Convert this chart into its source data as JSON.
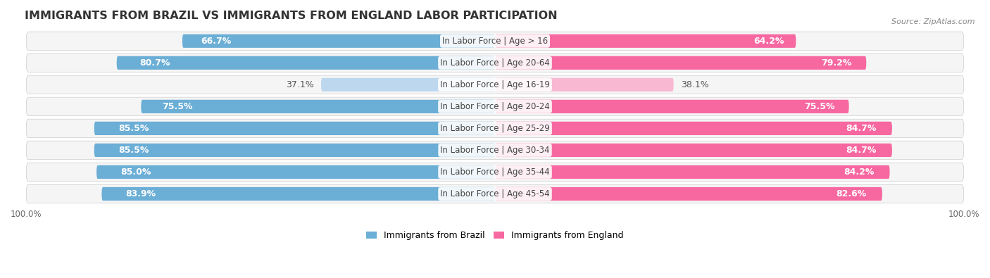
{
  "title": "IMMIGRANTS FROM BRAZIL VS IMMIGRANTS FROM ENGLAND LABOR PARTICIPATION",
  "source": "Source: ZipAtlas.com",
  "categories": [
    "In Labor Force | Age > 16",
    "In Labor Force | Age 20-64",
    "In Labor Force | Age 16-19",
    "In Labor Force | Age 20-24",
    "In Labor Force | Age 25-29",
    "In Labor Force | Age 30-34",
    "In Labor Force | Age 35-44",
    "In Labor Force | Age 45-54"
  ],
  "brazil_values": [
    66.7,
    80.7,
    37.1,
    75.5,
    85.5,
    85.5,
    85.0,
    83.9
  ],
  "england_values": [
    64.2,
    79.2,
    38.1,
    75.5,
    84.7,
    84.7,
    84.2,
    82.6
  ],
  "brazil_color_strong": "#6BAED6",
  "brazil_color_light": "#BDD7EE",
  "england_color_strong": "#F768A1",
  "england_color_light": "#F9B8D2",
  "row_bg_color": "#E8E8E8",
  "row_bg_alpha": 0.5,
  "bar_height": 0.62,
  "max_val": 100.0,
  "legend_brazil": "Immigrants from Brazil",
  "legend_england": "Immigrants from England",
  "brazil_label_color_in": "#FFFFFF",
  "brazil_label_color_out": "#555555",
  "england_label_color_in": "#FFFFFF",
  "england_label_color_out": "#555555",
  "low_threshold": 50,
  "label_fontsize": 9,
  "category_fontsize": 8.5,
  "title_fontsize": 11.5,
  "bg_color": "#FFFFFF"
}
